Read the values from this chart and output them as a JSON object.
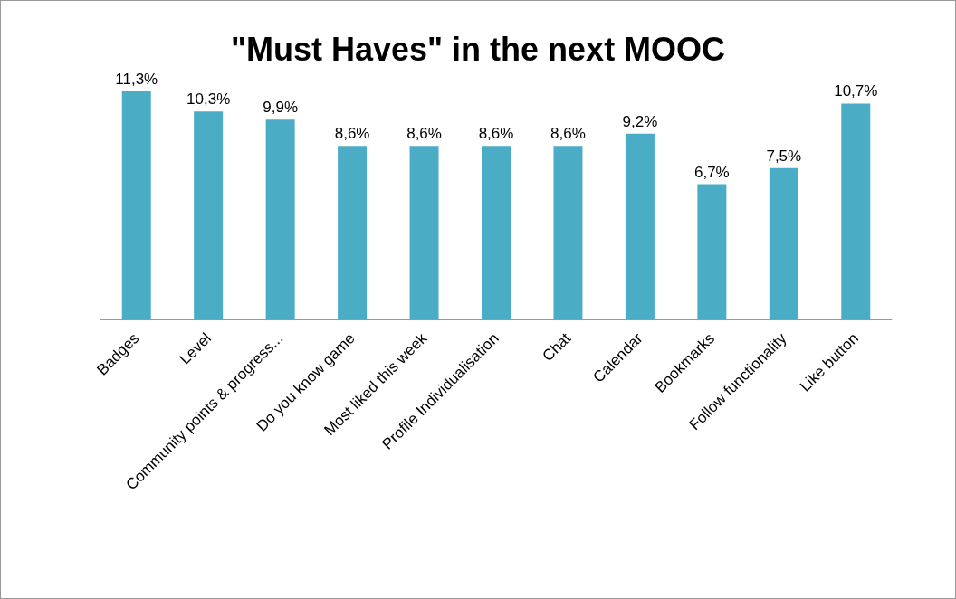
{
  "chart_data": {
    "type": "bar",
    "title": "\"Must Haves\" in the next MOOC",
    "categories": [
      "Badges",
      "Level",
      "Community points & progress...",
      "Do you know game",
      "Most liked this week",
      "Profile Individualisation",
      "Chat",
      "Calendar",
      "Bookmarks",
      "Follow functionality",
      "Like button"
    ],
    "values": [
      11.3,
      10.3,
      9.9,
      8.6,
      8.6,
      8.6,
      8.6,
      9.2,
      6.7,
      7.5,
      10.7
    ],
    "value_labels": [
      "11,3%",
      "10,3%",
      "9,9%",
      "8,6%",
      "8,6%",
      "8,6%",
      "8,6%",
      "9,2%",
      "6,7%",
      "7,5%",
      "10,7%"
    ],
    "color": "#4bacc6"
  }
}
